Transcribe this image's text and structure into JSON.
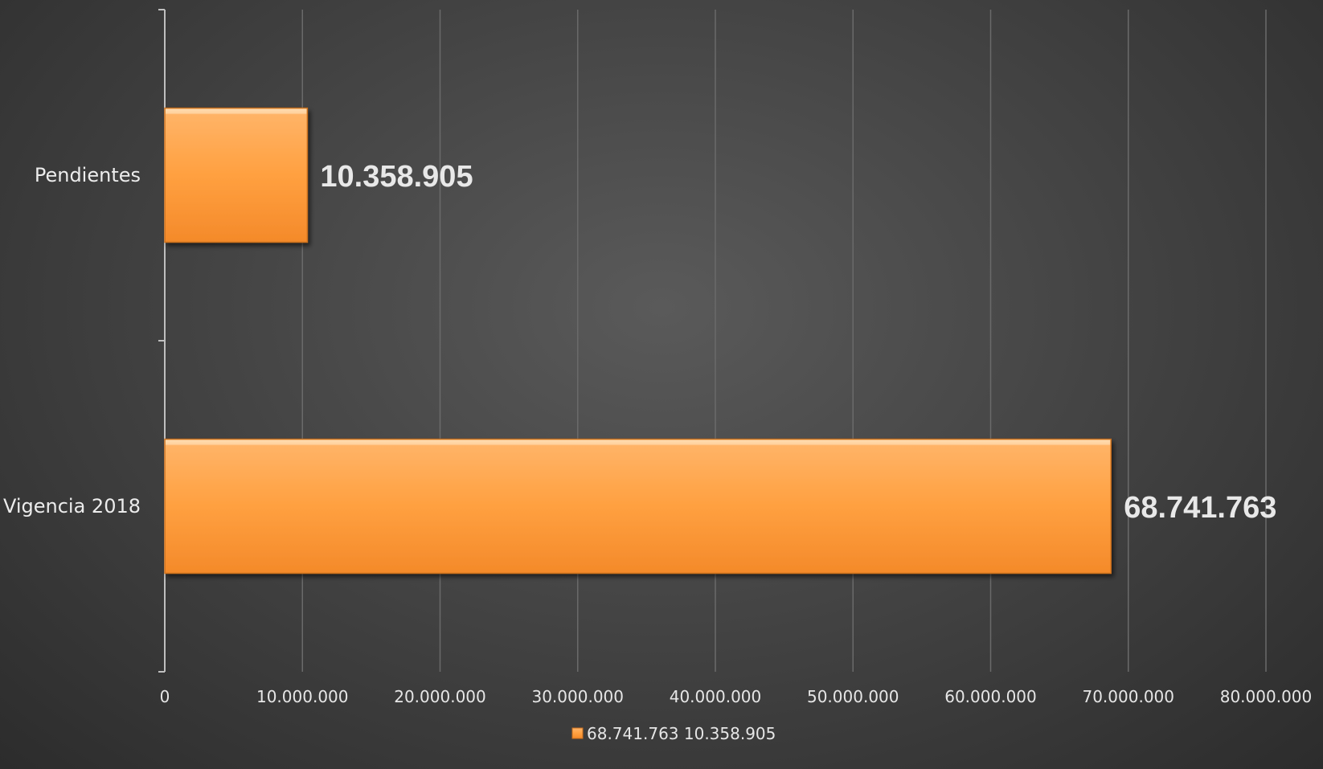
{
  "chart_data": {
    "type": "bar",
    "orientation": "horizontal",
    "categories": [
      "Pendientes",
      "Vigencia 2018"
    ],
    "values": [
      10358905,
      68741763
    ],
    "data_labels": [
      "10.358.905",
      "68.741.763"
    ],
    "xlim": [
      0,
      80000000
    ],
    "x_ticks": [
      0,
      10000000,
      20000000,
      30000000,
      40000000,
      50000000,
      60000000,
      70000000,
      80000000
    ],
    "x_tick_labels": [
      "0",
      "10.000.000",
      "20.000.000",
      "30.000.000",
      "40.000.000",
      "50.000.000",
      "60.000.000",
      "70.000.000",
      "80.000.000"
    ],
    "grid": "vertical",
    "legend": {
      "position": "bottom",
      "entries": [
        "68.741.763 10.358.905"
      ]
    },
    "colors": {
      "bar_top": "#ffb366",
      "bar_mid": "#ffa040",
      "bar_bottom": "#f48a2a",
      "bar_edge": "#c96f1e",
      "grid": "#6a6a6a",
      "axis": "#bfbfbf"
    }
  }
}
